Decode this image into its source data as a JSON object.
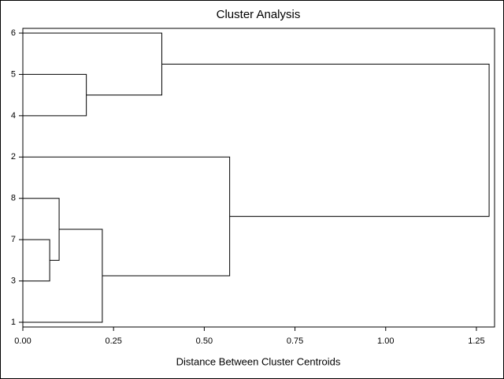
{
  "chart_data": {
    "type": "dendrogram",
    "title": "Cluster Analysis",
    "x_label": "Distance Between Cluster Centroids",
    "xlim": [
      0,
      1.3
    ],
    "xticks": [
      {
        "value": 0,
        "label": "0.00"
      },
      {
        "value": 0.25,
        "label": "0.25"
      },
      {
        "value": 0.5,
        "label": "0.50"
      },
      {
        "value": 0.75,
        "label": "0.75"
      },
      {
        "value": 1,
        "label": "1.00"
      },
      {
        "value": 1.25,
        "label": "1.25"
      }
    ],
    "color": "#000000",
    "tree": {
      "height": 1.285,
      "children": [
        {
          "height": 0.383,
          "children": [
            {
              "label": "6"
            },
            {
              "height": 0.175,
              "children": [
                {
                  "label": "5"
                },
                {
                  "label": "4"
                }
              ]
            }
          ]
        },
        {
          "height": 0.57,
          "children": [
            {
              "label": "2"
            },
            {
              "height": 0.219,
              "children": [
                {
                  "height": 0.1,
                  "children": [
                    {
                      "label": "8"
                    },
                    {
                      "height": 0.074,
                      "children": [
                        {
                          "label": "7"
                        },
                        {
                          "label": "3"
                        }
                      ]
                    }
                  ]
                },
                {
                  "label": "1"
                }
              ]
            }
          ]
        }
      ]
    }
  }
}
